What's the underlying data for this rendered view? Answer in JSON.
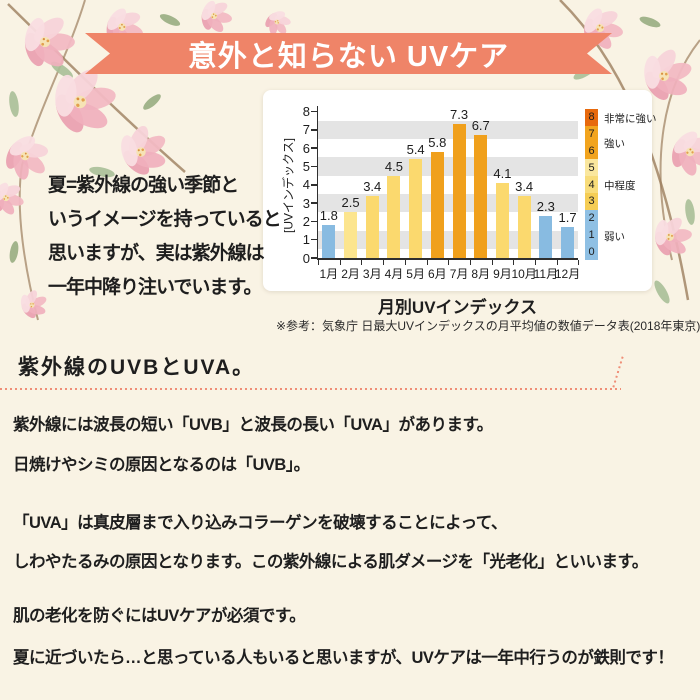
{
  "banner": {
    "title": "意外と知らない UVケア"
  },
  "intro": {
    "lines": [
      "夏=紫外線の強い季節と",
      "いうイメージを持っていると",
      "思いますが、実は紫外線は",
      "一年中降り注いでいます。"
    ]
  },
  "chart_data": {
    "type": "bar",
    "title": "月別UVインデックス",
    "ylabel": "[UVインデックス]",
    "reference": "※参考：気象庁 日最大UVインデックスの月平均値の数値データ表(2018年東京)",
    "categories": [
      "1月",
      "2月",
      "3月",
      "4月",
      "5月",
      "6月",
      "7月",
      "8月",
      "9月",
      "10月",
      "11月",
      "12月"
    ],
    "values": [
      1.8,
      2.5,
      3.4,
      4.5,
      5.4,
      5.8,
      7.3,
      6.7,
      4.1,
      3.4,
      2.3,
      1.7
    ],
    "ylim": [
      0,
      8
    ],
    "grid_band_centers": [
      1,
      3,
      5,
      7
    ],
    "bar_levels": [
      "weak",
      "moderate_light",
      "moderate",
      "moderate",
      "moderate",
      "strong",
      "strong",
      "strong",
      "moderate",
      "moderate",
      "weak",
      "weak"
    ],
    "palette": {
      "weak": "#88bbe1",
      "moderate_light": "#fce58e",
      "moderate": "#fbd96e",
      "strong": "#f0a01c"
    },
    "legend": {
      "cells": [
        {
          "value": "8",
          "color": "#e7690d"
        },
        {
          "value": "7",
          "color": "#f2a41e"
        },
        {
          "value": "6",
          "color": "#f2a41e"
        },
        {
          "value": "5",
          "color": "#fae79e"
        },
        {
          "value": "4",
          "color": "#f8dc7a"
        },
        {
          "value": "3",
          "color": "#f5cd55"
        },
        {
          "value": "2",
          "color": "#8fc0e4"
        },
        {
          "value": "1",
          "color": "#8fc0e4"
        },
        {
          "value": "0",
          "color": "#8fc0e4"
        }
      ],
      "labels": [
        {
          "text": "非常に強い",
          "anchor": 8
        },
        {
          "text": "強い",
          "anchor": 6.5
        },
        {
          "text": "中程度",
          "anchor": 4
        },
        {
          "text": "弱い",
          "anchor": 1
        }
      ]
    }
  },
  "section": {
    "heading": "紫外線のUVBとUVA。",
    "paragraph_lines": [
      "紫外線には波長の短い「UVB」と波長の長い「UVA」があります。",
      "日焼けやシミの原因となるのは「UVB」。",
      "「UVA」は真皮層まで入り込みコラーゲンを破壊することによって、",
      "しわやたるみの原因となります。この紫外線による肌ダメージを「光老化」といいます。",
      "肌の老化を防ぐにはUVケアが必須です。",
      "夏に近づいたら…と思っている人もいると思いますが、UVケアは一年中行うのが鉄則です！"
    ]
  },
  "colors": {
    "background": "#f9f3e4",
    "banner": "#ef8468",
    "dotted_line": "#ef8e77",
    "grid_band": "#e4e4e4",
    "text": "#1e1e1e"
  }
}
